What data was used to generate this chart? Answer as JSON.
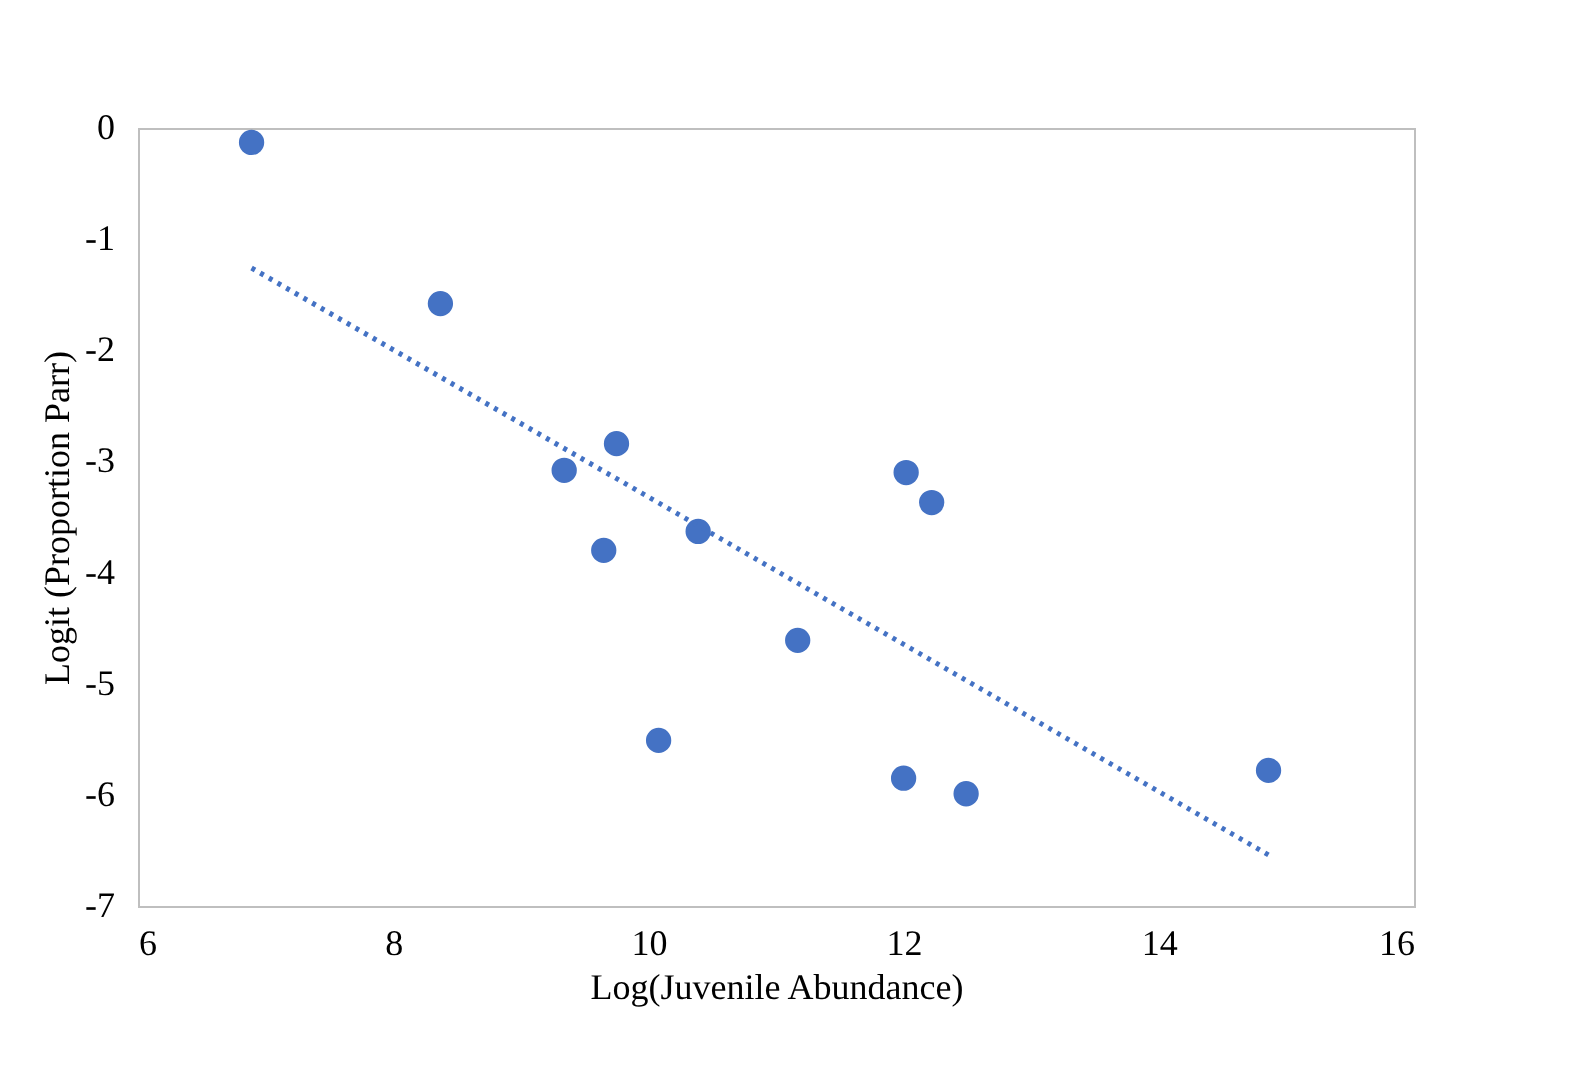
{
  "chart_data": {
    "type": "scatter",
    "xlabel": "Log(Juvenile Abundance)",
    "ylabel": "Logit (Proportion Parr)",
    "xlim": [
      6,
      16
    ],
    "xticks": [
      6,
      8,
      10,
      12,
      14,
      16
    ],
    "ylim": [
      -7,
      0
    ],
    "yticks": [
      -7,
      -6,
      -5,
      -4,
      -3,
      -2,
      -1,
      0
    ],
    "grid": false,
    "legend": false,
    "marker": "circle",
    "series": [
      {
        "type": "scatter",
        "color": "#4472c4",
        "x": [
          6.89,
          8.37,
          9.34,
          9.75,
          9.65,
          10.39,
          10.08,
          11.17,
          12.02,
          12.22,
          12.0,
          12.49,
          14.86
        ],
        "values": [
          -0.13,
          -1.58,
          -3.08,
          -2.84,
          -3.8,
          -3.63,
          -5.51,
          -4.61,
          -3.1,
          -3.37,
          -5.85,
          -5.99,
          -5.78
        ]
      },
      {
        "type": "line",
        "color": "#4472c4",
        "line_style": "dotted",
        "marker": "none",
        "x": [
          6.89,
          14.89
        ],
        "values": [
          -1.26,
          -6.56
        ]
      }
    ]
  }
}
